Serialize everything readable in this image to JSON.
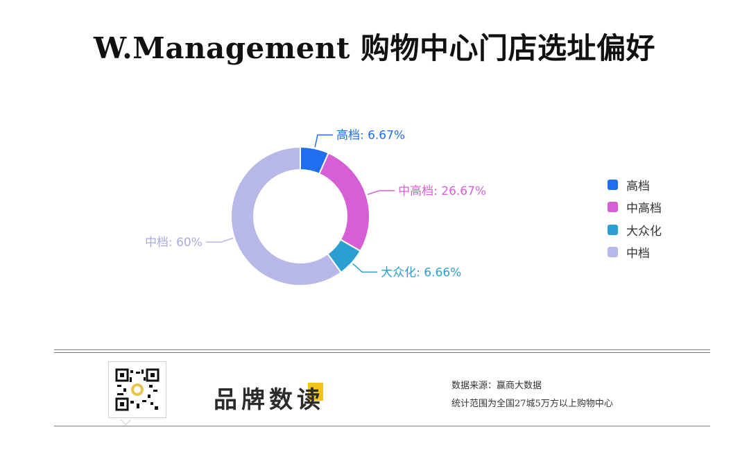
{
  "title": "W.Management 购物中心门店选址偏好",
  "chart_data": {
    "type": "pie",
    "variant": "donut",
    "categories": [
      "高档",
      "中高档",
      "大众化",
      "中档"
    ],
    "values": [
      6.67,
      26.67,
      6.66,
      60
    ],
    "unit": "%",
    "colors": [
      "#1f6ef0",
      "#d65fd6",
      "#2b9fd0",
      "#b7b7e8"
    ],
    "data_labels": [
      "高档: 6.67%",
      "中高档: 26.67%",
      "大众化: 6.66%",
      "中档: 60%"
    ],
    "legend": {
      "position": "right",
      "items": [
        "高档",
        "中高档",
        "大众化",
        "中档"
      ]
    }
  },
  "footer": {
    "brand": "品牌数读",
    "source": "数据来源：赢商大数据",
    "scope": "统计范围为全国27城5万方以上购物中心",
    "qr_icon": "qr-code-icon"
  }
}
